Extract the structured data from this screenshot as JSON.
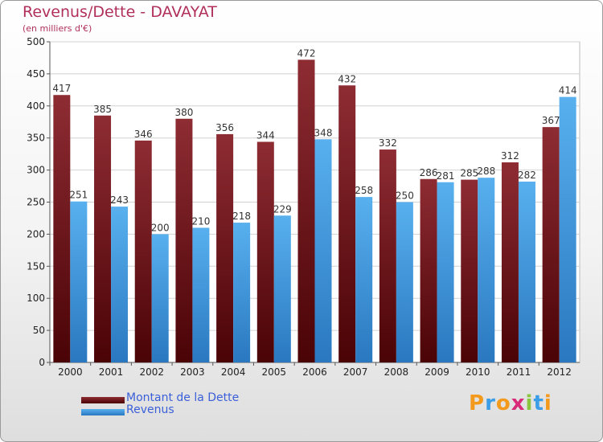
{
  "header": {
    "title": "Revenus/Dette - DAVAYAT",
    "subtitle": "(en milliers d'€)"
  },
  "legend": [
    {
      "label": "Montant de la Dette",
      "color": "#6b0f14"
    },
    {
      "label": "Revenus",
      "color": "#4ba3e3"
    }
  ],
  "logo": {
    "text": "Proxiti"
  },
  "chart_data": {
    "type": "bar",
    "title": "Revenus/Dette - DAVAYAT",
    "subtitle": "(en milliers d'€)",
    "categories": [
      "2000",
      "2001",
      "2002",
      "2003",
      "2004",
      "2005",
      "2006",
      "2007",
      "2008",
      "2009",
      "2010",
      "2011",
      "2012"
    ],
    "series": [
      {
        "name": "Montant de la Dette",
        "color": "#7a1a1e",
        "values": [
          417,
          385,
          346,
          380,
          356,
          344,
          472,
          432,
          332,
          286,
          285,
          312,
          367
        ]
      },
      {
        "name": "Revenus",
        "color": "#4ba3e3",
        "values": [
          251,
          243,
          200,
          210,
          218,
          229,
          348,
          258,
          250,
          281,
          288,
          282,
          414
        ]
      }
    ],
    "ylim": [
      0,
      500
    ],
    "yticks": [
      0,
      50,
      100,
      150,
      200,
      250,
      300,
      350,
      400,
      450,
      500
    ],
    "grid": true,
    "legend_position": "bottom-left"
  }
}
